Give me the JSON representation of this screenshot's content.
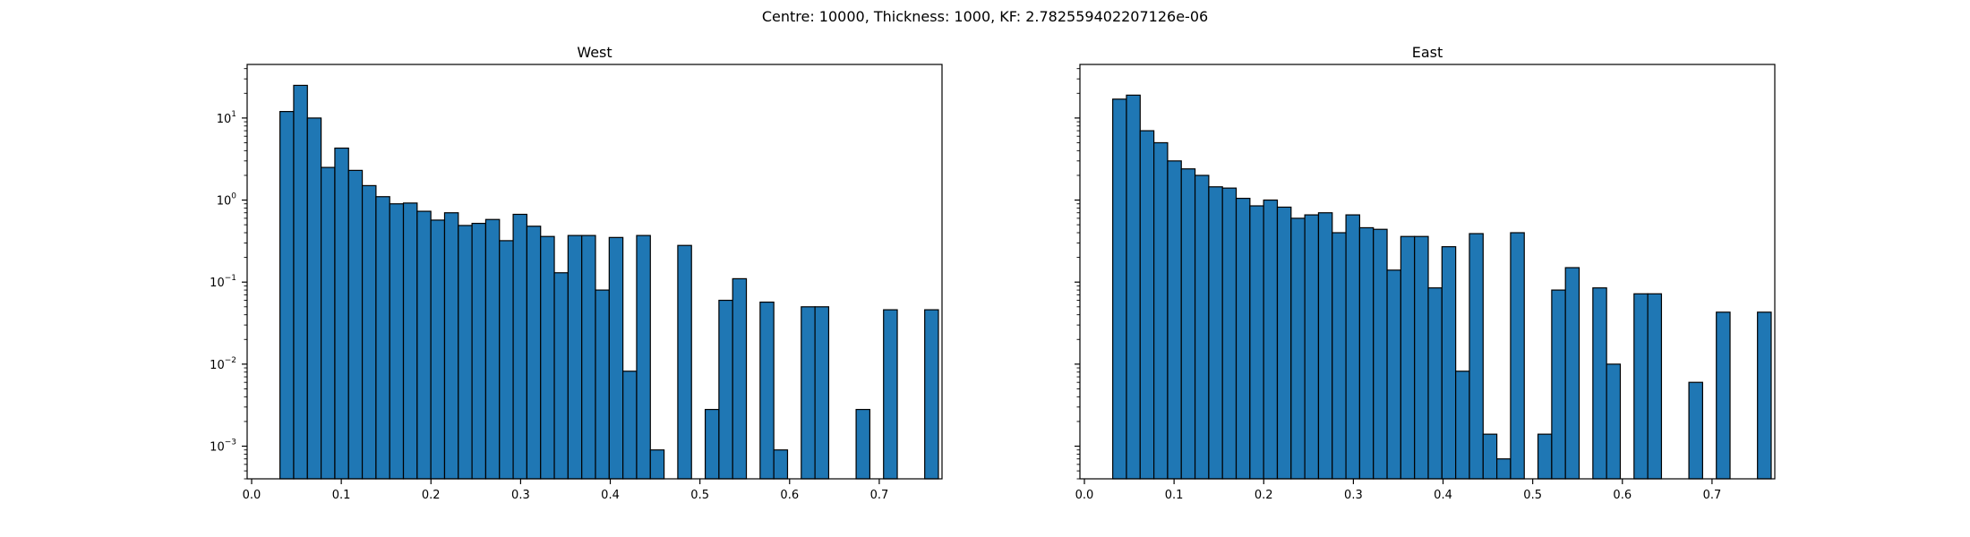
{
  "figure": {
    "suptitle": "Centre: 10000, Thickness: 1000, KF: 2.782559402207126e-06"
  },
  "chart_data": [
    {
      "type": "bar",
      "title": "West",
      "xlabel": "",
      "ylabel": "",
      "yscale": "log",
      "xlim": [
        -0.005,
        0.77
      ],
      "ylim": [
        0.0004,
        45
      ],
      "bin_width": 0.0153,
      "bin_start": 0.0316,
      "x_ticks": [
        0.0,
        0.1,
        0.2,
        0.3,
        0.4,
        0.5,
        0.6,
        0.7
      ],
      "x_tick_labels": [
        "0.0",
        "0.1",
        "0.2",
        "0.3",
        "0.4",
        "0.5",
        "0.6",
        "0.7"
      ],
      "y_tick_exponents": [
        -3,
        -2,
        -1,
        0,
        1
      ],
      "values": [
        12,
        25,
        10,
        2.5,
        4.3,
        2.3,
        1.5,
        1.1,
        0.9,
        0.92,
        0.73,
        0.57,
        0.7,
        0.49,
        0.52,
        0.58,
        0.32,
        0.67,
        0.48,
        0.36,
        0.13,
        0.37,
        0.37,
        0.08,
        0.35,
        0.0082,
        0.37,
        0.0009,
        0,
        0.28,
        0,
        0.0028,
        0.06,
        0.11,
        0,
        0.057,
        0.0009,
        0,
        0.05,
        0.05,
        0,
        0,
        0.0028,
        0,
        0.046,
        0,
        0,
        0.046
      ]
    },
    {
      "type": "bar",
      "title": "East",
      "xlabel": "",
      "ylabel": "",
      "yscale": "log",
      "xlim": [
        -0.005,
        0.77
      ],
      "ylim": [
        0.0004,
        45
      ],
      "bin_width": 0.0153,
      "bin_start": 0.0316,
      "x_ticks": [
        0.0,
        0.1,
        0.2,
        0.3,
        0.4,
        0.5,
        0.6,
        0.7
      ],
      "x_tick_labels": [
        "0.0",
        "0.1",
        "0.2",
        "0.3",
        "0.4",
        "0.5",
        "0.6",
        "0.7"
      ],
      "y_tick_exponents": [
        -3,
        -2,
        -1,
        0,
        1
      ],
      "values": [
        17,
        19,
        7,
        5,
        3,
        2.4,
        2,
        1.45,
        1.4,
        1.05,
        0.85,
        1.0,
        0.82,
        0.6,
        0.66,
        0.7,
        0.4,
        0.66,
        0.46,
        0.44,
        0.14,
        0.36,
        0.36,
        0.085,
        0.27,
        0.0082,
        0.39,
        0.0014,
        0.0007,
        0.4,
        0,
        0.0014,
        0.08,
        0.15,
        0,
        0.085,
        0.01,
        0,
        0.072,
        0.072,
        0,
        0,
        0.006,
        0,
        0.043,
        0,
        0,
        0.043
      ]
    }
  ]
}
